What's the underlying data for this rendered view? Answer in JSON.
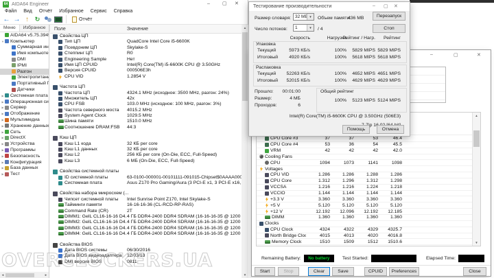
{
  "colors": {
    "accent": "#0078d7",
    "battery_green": "#00d22a",
    "logo_green": "#3aa435",
    "selection_gray": "#d5d5d5"
  },
  "watermark": "OVERCLOCKERS.UA",
  "main_window": {
    "title": "AIDA64 Engineer",
    "menu": [
      "Файл",
      "Вид",
      "Отчёт",
      "Избранное",
      "Сервис",
      "Справка"
    ],
    "toolbar": {
      "icons": [
        "back",
        "forward",
        "up",
        "refresh",
        "users",
        "display"
      ],
      "report_label": "Отчёт"
    },
    "sidebar": {
      "tabs": [
        {
          "label": "Меню",
          "active": true
        },
        {
          "label": "Избранное",
          "active": false
        }
      ],
      "items": [
        {
          "label": "AIDA64 v5.75.3945 Beta",
          "icon": "logo",
          "depth": 0
        },
        {
          "label": "Компьютер",
          "icon": "computer",
          "depth": 0,
          "arrow": "down"
        },
        {
          "label": "Суммарная информация",
          "icon": "summary",
          "depth": 1
        },
        {
          "label": "Имя компьютера",
          "icon": "compname",
          "depth": 1
        },
        {
          "label": "DMI",
          "icon": "dmi",
          "depth": 1
        },
        {
          "label": "IPMI",
          "icon": "ipmi",
          "depth": 1
        },
        {
          "label": "Разгон",
          "icon": "overclock",
          "depth": 1,
          "selected": true
        },
        {
          "label": "Электропитание",
          "icon": "power",
          "depth": 1
        },
        {
          "label": "Портативный ПК",
          "icon": "laptop",
          "depth": 1
        },
        {
          "label": "Датчики",
          "icon": "sensors",
          "depth": 1
        },
        {
          "label": "Системная плата",
          "icon": "motherboard",
          "depth": 0,
          "arrow": "right"
        },
        {
          "label": "Операционная система",
          "icon": "os",
          "depth": 0,
          "arrow": "right"
        },
        {
          "label": "Сервер",
          "icon": "server",
          "depth": 0,
          "arrow": "right"
        },
        {
          "label": "Отображение",
          "icon": "displaycat",
          "depth": 0,
          "arrow": "right"
        },
        {
          "label": "Мультимедиа",
          "icon": "multimedia",
          "depth": 0,
          "arrow": "right"
        },
        {
          "label": "Хранение данных",
          "icon": "storage",
          "depth": 0,
          "arrow": "right"
        },
        {
          "label": "Сеть",
          "icon": "network",
          "depth": 0,
          "arrow": "right"
        },
        {
          "label": "DirectX",
          "icon": "directx",
          "depth": 0,
          "arrow": "right"
        },
        {
          "label": "Устройства",
          "icon": "devices",
          "depth": 0,
          "arrow": "right"
        },
        {
          "label": "Программы",
          "icon": "programs",
          "depth": 0,
          "arrow": "right"
        },
        {
          "label": "Безопасность",
          "icon": "security",
          "depth": 0,
          "arrow": "right"
        },
        {
          "label": "Конфигурация",
          "icon": "config",
          "depth": 0,
          "arrow": "right"
        },
        {
          "label": "База данных",
          "icon": "database",
          "depth": 0,
          "arrow": "right"
        },
        {
          "label": "Тест",
          "icon": "benchmark",
          "depth": 0,
          "arrow": "right"
        }
      ]
    },
    "list": {
      "columns": [
        "Поле",
        "Значение"
      ],
      "rows": [
        {
          "t": "s",
          "icon": "cpu",
          "label": "Свойства ЦП"
        },
        {
          "t": "i",
          "icon": "cpu",
          "label": "Тип ЦП",
          "value": "QuadCore Intel Core i5-6600K"
        },
        {
          "t": "i",
          "icon": "cpu",
          "label": "Псевдоним ЦП",
          "value": "Skylake-S"
        },
        {
          "t": "i",
          "icon": "cpu",
          "label": "Степпинг ЦП",
          "value": "R0"
        },
        {
          "t": "i",
          "icon": "cpu",
          "label": "Engineering Sample",
          "value": "Нет"
        },
        {
          "t": "i",
          "icon": "cpu",
          "label": "Имя ЦП CPUID",
          "value": "Intel(R) Core(TM) i5-6600K CPU @ 3.50GHz"
        },
        {
          "t": "i",
          "icon": "cpu",
          "label": "Версия CPUID",
          "value": "000506E3h"
        },
        {
          "t": "i",
          "icon": "bolt",
          "label": "CPU VID",
          "value": "1.2854 V"
        },
        {
          "t": "sp"
        },
        {
          "t": "s",
          "icon": "cpu",
          "label": "Частота ЦП"
        },
        {
          "t": "i",
          "icon": "cpu",
          "label": "Частота ЦП",
          "value": "4324.1 MHz  (исходное: 3500 MHz, разгон: 24%)"
        },
        {
          "t": "i",
          "icon": "cpu",
          "label": "Множитель ЦП",
          "value": "42x"
        },
        {
          "t": "i",
          "icon": "cpu",
          "label": "CPU FSB",
          "value": "103.0 MHz  (исходное: 100 MHz, разгон: 3%)"
        },
        {
          "t": "i",
          "icon": "chip",
          "label": "Частота северного моста",
          "value": "4015.2 MHz"
        },
        {
          "t": "i",
          "icon": "chip",
          "label": "System Agent Clock",
          "value": "1029.5 MHz"
        },
        {
          "t": "i",
          "icon": "mem",
          "label": "Шина памяти",
          "value": "1510.0 MHz"
        },
        {
          "t": "i",
          "icon": "mem",
          "label": "Соотношение DRAM:FSB",
          "value": "44:3"
        },
        {
          "t": "sp"
        },
        {
          "t": "s",
          "icon": "chip",
          "label": "Кэш ЦП"
        },
        {
          "t": "i",
          "icon": "chip",
          "label": "Кэш L1 кода",
          "value": "32 КБ per core"
        },
        {
          "t": "i",
          "icon": "chip",
          "label": "Кэш L1 данных",
          "value": "32 КБ per core"
        },
        {
          "t": "i",
          "icon": "chip",
          "label": "Кэш L2",
          "value": "256 КБ per core  (On-Die, ECC, Full-Speed)"
        },
        {
          "t": "i",
          "icon": "chip",
          "label": "Кэш L3",
          "value": "6 МБ  (On-Die, ECC, Full-Speed)"
        },
        {
          "t": "sp"
        },
        {
          "t": "s",
          "icon": "mobo",
          "label": "Свойства системной платы"
        },
        {
          "t": "i",
          "icon": "mobo",
          "label": "ID системной платы",
          "value": "63-0100-000001-00101111-091015-Chipset$0AAAA000_BIOS DATE: 0..."
        },
        {
          "t": "i",
          "icon": "mobo",
          "label": "Системная плата",
          "value": "Asus Z170 Pro Gaming/Aura  (3 PCI-E x1, 3 PCI-E x16, 1 M.2, 4 DDR4 ..."
        },
        {
          "t": "sp"
        },
        {
          "t": "s",
          "icon": "chip",
          "label": "Свойства набора микросхем (..."
        },
        {
          "t": "i",
          "icon": "chip",
          "label": "Чипсет системной платы",
          "value": "Intel Sunrise Point Z170, Intel Skylake-S"
        },
        {
          "t": "i",
          "icon": "mem",
          "label": "Тайминги памяти",
          "value": "16-16-16-36  (CL-RCD-RP-RAS)"
        },
        {
          "t": "i",
          "icon": "mem",
          "label": "Command Rate (CR)",
          "value": "2T"
        },
        {
          "t": "i",
          "icon": "mem",
          "label": "DIMM1: GeIL CL16-16-16 D4...",
          "value": "4 ГБ DDR4-2400 DDR4 SDRAM  (16-16-16-35 @ 1200 МГц)  (15-15-1..."
        },
        {
          "t": "i",
          "icon": "mem",
          "label": "DIMM2: GeIL CL16-16-16 D4...",
          "value": "4 ГБ DDR4-2400 DDR4 SDRAM  (16-16-16-35 @ 1200 МГц)  (15-15-1..."
        },
        {
          "t": "i",
          "icon": "mem",
          "label": "DIMM3: GeIL CL16-16-16 D4...",
          "value": "4 ГБ DDR4-2400 DDR4 SDRAM  (16-16-16-35 @ 1200 МГц)  (15-15-1..."
        },
        {
          "t": "i",
          "icon": "mem",
          "label": "DIMM4: GeIL CL16-16-16 D4...",
          "value": "4 ГБ DDR4-2400 DDR4 SDRAM  (16-16-16-35 @ 1200 МГц)  (15-15-1..."
        },
        {
          "t": "sp"
        },
        {
          "t": "s",
          "icon": "bios",
          "label": "Свойства BIOS"
        },
        {
          "t": "i",
          "icon": "date",
          "label": "Дата BIOS системы",
          "value": "06/30/2016"
        },
        {
          "t": "i",
          "icon": "date",
          "label": "Дата BIOS видеоадаптера",
          "value": "12/03/13"
        },
        {
          "t": "i",
          "icon": "bios",
          "label": "DMI версия BIOS",
          "value": "0811"
        }
      ]
    }
  },
  "benchmark_dialog": {
    "title": "Тестирование производительности",
    "dictionary_label": "Размер словаря:",
    "dictionary_value": "32 MB",
    "memory_label": "Объем памяти:",
    "memory_value": "436 MB",
    "threads_label": "Число потоков:",
    "threads_value": "1",
    "threads_total": "/ 4",
    "restart_button": "Перезапуск",
    "stop_button": "Стоп",
    "table_headers": [
      "Скорость",
      "Нагрузка",
      "Рейтинг / Нагр.",
      "Рейтинг"
    ],
    "packing": {
      "title": "Упаковка",
      "rows": [
        {
          "label": "Текущий",
          "speed": "5973 КБ/s",
          "load": "100%",
          "rating_load": "5829 MIPS",
          "rating": "5829 MIPS"
        },
        {
          "label": "Итоговый",
          "speed": "4920 КБ/s",
          "load": "100%",
          "rating_load": "5618 MIPS",
          "rating": "5618 MIPS"
        }
      ]
    },
    "unpacking": {
      "title": "Распаковка",
      "rows": [
        {
          "label": "Текущий",
          "speed": "52263 КБ/s",
          "load": "100%",
          "rating_load": "4652 MIPS",
          "rating": "4651 MIPS"
        },
        {
          "label": "Итоговый",
          "speed": "52015 КБ/s",
          "load": "100%",
          "rating_load": "4629 MIPS",
          "rating": "4629 MIPS"
        }
      ]
    },
    "elapsed_label": "Прошло:",
    "elapsed_value": "00:01:00",
    "size_label": "Размер:",
    "size_value": "4 МБ",
    "passes_label": "Проходов:",
    "passes_value": "6",
    "total_rating": {
      "title": "Общий рейтинг",
      "load": "100%",
      "rating_load": "5123 MIPS",
      "rating": "5124 MIPS"
    },
    "cpu_line": "Intel(R) Core(TM) i5-6600K CPU @ 3.50GHz (506E3)",
    "app_line": "7-Zip 16.02 [64-bit]",
    "help_button": "Помощь",
    "cancel_button": "Отмена"
  },
  "stability_window": {
    "sensors": [
      {
        "t": "i",
        "icon": "temp",
        "label": "CPU Core #3",
        "values": [
          "37",
          "37",
          "53",
          "46.4"
        ]
      },
      {
        "t": "i",
        "icon": "temp",
        "label": "CPU Core #4",
        "values": [
          "53",
          "36",
          "54",
          "45.5"
        ]
      },
      {
        "t": "i",
        "icon": "vrm",
        "label": "VRM",
        "values": [
          "42",
          "42",
          "42",
          "42.0"
        ]
      },
      {
        "t": "s",
        "icon": "fan",
        "label": "Cooling Fans",
        "values": []
      },
      {
        "t": "i",
        "icon": "fanitem",
        "label": "CPU",
        "values": [
          "1094",
          "1073",
          "1141",
          "1098"
        ]
      },
      {
        "t": "s",
        "icon": "bolt",
        "label": "Voltages",
        "values": []
      },
      {
        "t": "i",
        "icon": "chip",
        "label": "CPU VID",
        "values": [
          "1.286",
          "1.286",
          "1.288",
          "1.286"
        ]
      },
      {
        "t": "i",
        "icon": "chip",
        "label": "CPU Core",
        "values": [
          "1.312",
          "1.296",
          "1.312",
          "1.298"
        ]
      },
      {
        "t": "i",
        "icon": "chip",
        "label": "VCCSA",
        "values": [
          "1.216",
          "1.216",
          "1.224",
          "1.218"
        ]
      },
      {
        "t": "i",
        "icon": "chip",
        "label": "VCCIO",
        "values": [
          "1.144",
          "1.144",
          "1.144",
          "1.144"
        ]
      },
      {
        "t": "i",
        "icon": "bolt",
        "label": "+3.3 V",
        "values": [
          "3.360",
          "3.360",
          "3.360",
          "3.360"
        ]
      },
      {
        "t": "i",
        "icon": "bolt",
        "label": "+5 V",
        "values": [
          "5.120",
          "5.120",
          "5.120",
          "5.120"
        ]
      },
      {
        "t": "i",
        "icon": "bolt",
        "label": "+12 V",
        "values": [
          "12.192",
          "12.096",
          "12.192",
          "12.185"
        ]
      },
      {
        "t": "i",
        "icon": "mem",
        "label": "DIMM",
        "values": [
          "1.360",
          "1.360",
          "1.360",
          "1.360"
        ]
      },
      {
        "t": "s",
        "icon": "clock",
        "label": "Clocks",
        "values": []
      },
      {
        "t": "i",
        "icon": "clock",
        "label": "CPU Clock",
        "values": [
          "4324",
          "4322",
          "4329",
          "4325.7"
        ]
      },
      {
        "t": "i",
        "icon": "chip",
        "label": "North Bridge Clock",
        "values": [
          "4015",
          "4013",
          "4020",
          "4016.8"
        ]
      },
      {
        "t": "i",
        "icon": "mem",
        "label": "Memory Clock",
        "values": [
          "1510",
          "1509",
          "1512",
          "1510.6"
        ]
      }
    ],
    "status": {
      "battery_label": "Remaining Battery:",
      "battery_value": "No battery",
      "test_started_label": "Test Started:",
      "elapsed_label": "Elapsed Time:"
    },
    "buttons": [
      {
        "label": "Start"
      },
      {
        "label": "Stop",
        "disabled": true
      },
      {
        "label": "Clear",
        "focused": true
      },
      {
        "label": "Save"
      },
      {
        "label": "CPUID"
      },
      {
        "label": "Preferences"
      },
      {
        "label": "Close",
        "align": "right"
      }
    ]
  }
}
